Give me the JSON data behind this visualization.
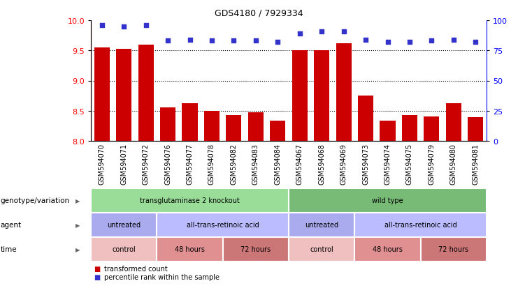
{
  "title": "GDS4180 / 7929334",
  "samples": [
    "GSM594070",
    "GSM594071",
    "GSM594072",
    "GSM594076",
    "GSM594077",
    "GSM594078",
    "GSM594082",
    "GSM594083",
    "GSM594084",
    "GSM594067",
    "GSM594068",
    "GSM594069",
    "GSM594073",
    "GSM594074",
    "GSM594075",
    "GSM594079",
    "GSM594080",
    "GSM594081"
  ],
  "bar_values": [
    9.55,
    9.53,
    9.6,
    8.55,
    8.62,
    8.5,
    8.43,
    8.47,
    8.33,
    9.5,
    9.5,
    9.62,
    8.75,
    8.33,
    8.43,
    8.41,
    8.62,
    8.39
  ],
  "dot_values": [
    96,
    95,
    96,
    83,
    84,
    83,
    83,
    83,
    82,
    89,
    91,
    91,
    84,
    82,
    82,
    83,
    84,
    82
  ],
  "ylim_left": [
    8,
    10
  ],
  "ylim_right": [
    0,
    100
  ],
  "yticks_left": [
    8,
    8.5,
    9,
    9.5,
    10
  ],
  "yticks_right": [
    0,
    25,
    50,
    75,
    100
  ],
  "bar_color": "#cc0000",
  "dot_color": "#3333cc",
  "bg_color": "#ffffff",
  "genotype_groups": [
    {
      "label": "transglutaminase 2 knockout",
      "start": 0,
      "end": 9,
      "color": "#99dd99"
    },
    {
      "label": "wild type",
      "start": 9,
      "end": 18,
      "color": "#77bb77"
    }
  ],
  "agent_groups": [
    {
      "label": "untreated",
      "start": 0,
      "end": 3,
      "color": "#aaaaee"
    },
    {
      "label": "all-trans-retinoic acid",
      "start": 3,
      "end": 9,
      "color": "#bbbbff"
    },
    {
      "label": "untreated",
      "start": 9,
      "end": 12,
      "color": "#aaaaee"
    },
    {
      "label": "all-trans-retinoic acid",
      "start": 12,
      "end": 18,
      "color": "#bbbbff"
    }
  ],
  "time_groups": [
    {
      "label": "control",
      "start": 0,
      "end": 3,
      "color": "#f0c0c0"
    },
    {
      "label": "48 hours",
      "start": 3,
      "end": 6,
      "color": "#e09090"
    },
    {
      "label": "72 hours",
      "start": 6,
      "end": 9,
      "color": "#cc7777"
    },
    {
      "label": "control",
      "start": 9,
      "end": 12,
      "color": "#f0c0c0"
    },
    {
      "label": "48 hours",
      "start": 12,
      "end": 15,
      "color": "#e09090"
    },
    {
      "label": "72 hours",
      "start": 15,
      "end": 18,
      "color": "#cc7777"
    }
  ],
  "legend_items": [
    {
      "label": "transformed count",
      "color": "#cc0000"
    },
    {
      "label": "percentile rank within the sample",
      "color": "#3333cc"
    }
  ],
  "row_label_color": "#000000",
  "row_labels": [
    "genotype/variation",
    "agent",
    "time"
  ]
}
